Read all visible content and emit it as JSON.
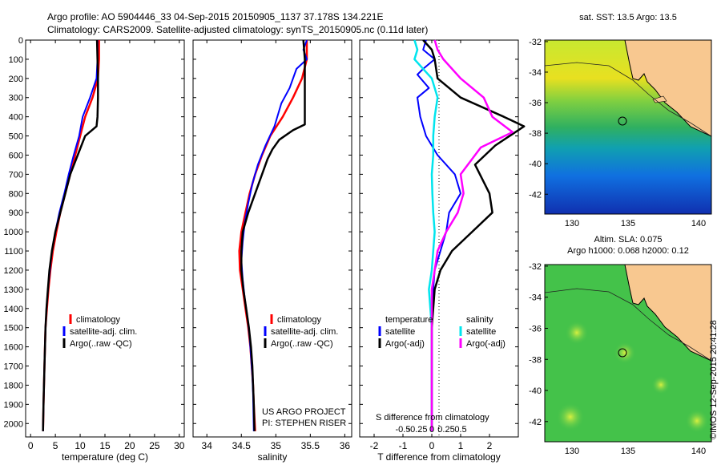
{
  "header": {
    "title_line1": "Argo profile: AO 5904446_33 04-Sep-2015 20150905_1137 37.178S 134.221E",
    "title_line2": "Climatology: CARS2009. Satellite-adjusted climatology: synTS_20150905.nc (0.11d later)"
  },
  "colors": {
    "climatology": "#ff0000",
    "satellite": "#0000ff",
    "argo": "#000000",
    "sal_sat": "#00e5ee",
    "sal_argo": "#ff00ff"
  },
  "chart_data": [
    {
      "type": "line",
      "panel": "temperature",
      "xlabel": "temperature (deg C)",
      "xlim": [
        -1,
        31
      ],
      "xticks": [
        0,
        5,
        10,
        15,
        20,
        25,
        30
      ],
      "ylim": [
        2070,
        0
      ],
      "yticks": [
        0,
        100,
        200,
        300,
        400,
        500,
        600,
        700,
        800,
        900,
        1000,
        1100,
        1200,
        1300,
        1400,
        1500,
        1600,
        1700,
        1800,
        1900,
        2000
      ],
      "legend": [
        "climatology",
        "satellite-adj. clim.",
        "Argo(..raw -QC)"
      ],
      "series": [
        {
          "name": "climatology",
          "color": "#ff0000",
          "points": [
            [
              13.8,
              0
            ],
            [
              13.8,
              100
            ],
            [
              13.6,
              200
            ],
            [
              12.5,
              300
            ],
            [
              11,
              400
            ],
            [
              10,
              500
            ],
            [
              9,
              600
            ],
            [
              8,
              700
            ],
            [
              7,
              800
            ],
            [
              6,
              900
            ],
            [
              5.2,
              1000
            ],
            [
              4.5,
              1100
            ],
            [
              4,
              1200
            ],
            [
              3.6,
              1300
            ],
            [
              3.3,
              1400
            ],
            [
              3,
              1500
            ],
            [
              2.8,
              1700
            ],
            [
              2.6,
              1900
            ],
            [
              2.5,
              2040
            ]
          ]
        },
        {
          "name": "satellite-adj. clim.",
          "color": "#0000ff",
          "points": [
            [
              13.5,
              0
            ],
            [
              13.5,
              100
            ],
            [
              13.3,
              200
            ],
            [
              12,
              300
            ],
            [
              10.5,
              400
            ],
            [
              9.8,
              500
            ],
            [
              8.7,
              600
            ],
            [
              7.7,
              700
            ],
            [
              6.8,
              800
            ],
            [
              5.8,
              900
            ],
            [
              5,
              1000
            ],
            [
              4.3,
              1100
            ],
            [
              3.9,
              1200
            ],
            [
              3.5,
              1300
            ],
            [
              3.2,
              1400
            ],
            [
              3,
              1500
            ],
            [
              2.8,
              1700
            ],
            [
              2.6,
              1900
            ],
            [
              2.5,
              2040
            ]
          ]
        },
        {
          "name": "Argo(..raw -QC)",
          "color": "#000000",
          "points": [
            [
              13.4,
              0
            ],
            [
              13.5,
              100
            ],
            [
              13.6,
              200
            ],
            [
              13.6,
              300
            ],
            [
              13.5,
              400
            ],
            [
              13.3,
              450
            ],
            [
              11,
              500
            ],
            [
              9.5,
              600
            ],
            [
              8,
              700
            ],
            [
              7,
              800
            ],
            [
              6,
              900
            ],
            [
              5,
              1000
            ],
            [
              4.3,
              1100
            ],
            [
              3.8,
              1200
            ],
            [
              3.5,
              1300
            ],
            [
              3.2,
              1400
            ],
            [
              3,
              1500
            ],
            [
              2.8,
              1700
            ],
            [
              2.6,
              1900
            ],
            [
              2.5,
              2040
            ]
          ]
        }
      ]
    },
    {
      "type": "line",
      "panel": "salinity",
      "xlabel": "salinity",
      "xlim": [
        33.8,
        36.1
      ],
      "xticks": [
        34,
        34.5,
        35,
        35.5,
        36
      ],
      "xtick_labels": [
        "34",
        "34.5",
        "35",
        "35.5",
        "36"
      ],
      "ylim": [
        2070,
        0
      ],
      "legend": [
        "climatology",
        "satellite-adj. clim.",
        "Argo(..raw -QC)"
      ],
      "annotation": [
        "US ARGO PROJECT",
        "PI: STEPHEN RISER"
      ],
      "series": [
        {
          "name": "climatology",
          "color": "#ff0000",
          "points": [
            [
              35.45,
              0
            ],
            [
              35.45,
              100
            ],
            [
              35.38,
              200
            ],
            [
              35.25,
              300
            ],
            [
              35.1,
              400
            ],
            [
              34.92,
              500
            ],
            [
              34.8,
              600
            ],
            [
              34.7,
              700
            ],
            [
              34.62,
              800
            ],
            [
              34.56,
              900
            ],
            [
              34.5,
              1000
            ],
            [
              34.47,
              1100
            ],
            [
              34.48,
              1200
            ],
            [
              34.52,
              1300
            ],
            [
              34.56,
              1400
            ],
            [
              34.6,
              1500
            ],
            [
              34.63,
              1600
            ],
            [
              34.65,
              1700
            ],
            [
              34.67,
              1800
            ],
            [
              34.68,
              1900
            ],
            [
              34.7,
              2040
            ]
          ]
        },
        {
          "name": "satellite-adj. clim.",
          "color": "#0000ff",
          "points": [
            [
              35.45,
              0
            ],
            [
              35.4,
              50
            ],
            [
              35.45,
              100
            ],
            [
              35.3,
              150
            ],
            [
              35.2,
              250
            ],
            [
              35.08,
              330
            ],
            [
              34.98,
              450
            ],
            [
              34.85,
              550
            ],
            [
              34.74,
              650
            ],
            [
              34.66,
              750
            ],
            [
              34.6,
              850
            ],
            [
              34.55,
              950
            ],
            [
              34.52,
              1050
            ],
            [
              34.5,
              1150
            ],
            [
              34.52,
              1250
            ],
            [
              34.55,
              1350
            ],
            [
              34.59,
              1450
            ],
            [
              34.62,
              1550
            ],
            [
              34.64,
              1650
            ],
            [
              34.66,
              1750
            ],
            [
              34.67,
              1850
            ],
            [
              34.68,
              2040
            ]
          ]
        },
        {
          "name": "Argo(..raw -QC)",
          "color": "#000000",
          "points": [
            [
              35.4,
              0
            ],
            [
              35.42,
              100
            ],
            [
              35.42,
              300
            ],
            [
              35.42,
              440
            ],
            [
              35.25,
              470
            ],
            [
              35.05,
              520
            ],
            [
              34.95,
              570
            ],
            [
              34.88,
              620
            ],
            [
              34.8,
              700
            ],
            [
              34.7,
              800
            ],
            [
              34.6,
              900
            ],
            [
              34.52,
              1000
            ],
            [
              34.5,
              1100
            ],
            [
              34.5,
              1200
            ],
            [
              34.53,
              1300
            ],
            [
              34.57,
              1400
            ],
            [
              34.61,
              1500
            ],
            [
              34.64,
              1600
            ],
            [
              34.66,
              1700
            ],
            [
              34.67,
              1800
            ],
            [
              34.68,
              1900
            ],
            [
              34.69,
              2040
            ]
          ]
        }
      ]
    },
    {
      "type": "line",
      "panel": "difference",
      "xlabel": "T difference from climatology",
      "xlabel_top": "S difference from climatology",
      "xlim": [
        -2.5,
        3
      ],
      "xticks": [
        -2,
        -1,
        0,
        1,
        2
      ],
      "xticks_top": [
        -1,
        -0.5,
        0,
        0.5,
        1
      ],
      "xtick_labels_top": [
        "-0.5",
        "-0.25",
        "0",
        "0.25",
        "0.5"
      ],
      "ylim": [
        2070,
        0
      ],
      "legend_temperature": [
        "temperature",
        "satellite",
        "Argo(-adj)"
      ],
      "legend_salinity": [
        "salinity",
        "satellite",
        "Argo(-adj)"
      ],
      "series": [
        {
          "name": "T satellite",
          "color": "#0000ff",
          "points": [
            [
              -0.2,
              0
            ],
            [
              -0.3,
              50
            ],
            [
              0.1,
              100
            ],
            [
              -0.3,
              150
            ],
            [
              -0.5,
              180
            ],
            [
              -0.1,
              250
            ],
            [
              -0.5,
              300
            ],
            [
              -0.4,
              400
            ],
            [
              -0.2,
              500
            ],
            [
              0.2,
              600
            ],
            [
              0.8,
              700
            ],
            [
              1,
              800
            ],
            [
              0.6,
              900
            ],
            [
              0.5,
              1000
            ],
            [
              0.3,
              1100
            ],
            [
              0.1,
              1200
            ],
            [
              0.05,
              1300
            ],
            [
              0,
              1500
            ],
            [
              0,
              2040
            ]
          ]
        },
        {
          "name": "T Argo(-adj)",
          "color": "#000000",
          "points": [
            [
              -0.3,
              0
            ],
            [
              0,
              50
            ],
            [
              0.1,
              100
            ],
            [
              0.2,
              200
            ],
            [
              1,
              300
            ],
            [
              2.5,
              400
            ],
            [
              3.2,
              450
            ],
            [
              2.2,
              550
            ],
            [
              1.5,
              650
            ],
            [
              2,
              800
            ],
            [
              2.1,
              900
            ],
            [
              1.4,
              1000
            ],
            [
              0.7,
              1100
            ],
            [
              0.3,
              1200
            ],
            [
              0.1,
              1300
            ],
            [
              0,
              1500
            ],
            [
              0,
              2040
            ]
          ]
        },
        {
          "name": "S satellite",
          "color": "#00e5ee",
          "points": [
            [
              -0.6,
              0
            ],
            [
              -0.5,
              50
            ],
            [
              -0.6,
              100
            ],
            [
              -0.3,
              150
            ],
            [
              0,
              200
            ],
            [
              0.2,
              300
            ],
            [
              0.1,
              400
            ],
            [
              0.05,
              500
            ],
            [
              0.05,
              600
            ],
            [
              0,
              700
            ],
            [
              0.02,
              800
            ],
            [
              0.05,
              900
            ],
            [
              0.1,
              1000
            ],
            [
              0.05,
              1100
            ],
            [
              0,
              1200
            ],
            [
              -0.1,
              1300
            ],
            [
              -0.05,
              1400
            ],
            [
              0,
              1500
            ],
            [
              0,
              2040
            ]
          ]
        },
        {
          "name": "S Argo(-adj)",
          "color": "#ff00ff",
          "points": [
            [
              0.1,
              0
            ],
            [
              0.2,
              50
            ],
            [
              0.4,
              100
            ],
            [
              1,
              200
            ],
            [
              1.8,
              300
            ],
            [
              2.1,
              400
            ],
            [
              2.8,
              480
            ],
            [
              1.7,
              560
            ],
            [
              1,
              700
            ],
            [
              1.1,
              800
            ],
            [
              0.9,
              900
            ],
            [
              0.5,
              1000
            ],
            [
              0.2,
              1100
            ],
            [
              0.1,
              1200
            ],
            [
              0,
              1300
            ],
            [
              0,
              1500
            ],
            [
              0,
              2040
            ]
          ]
        }
      ]
    }
  ],
  "maps": {
    "sst": {
      "title": "sat. SST: 13.5 Argo: 13.5",
      "xticks": [
        130,
        135,
        140
      ],
      "yticks": [
        -32,
        -34,
        -36,
        -38,
        -40,
        -42
      ]
    },
    "sla": {
      "title_line1": "Altim. SLA: 0.075",
      "title_line2": "Argo h1000: 0.068 h2000: 0.12",
      "xticks": [
        130,
        135,
        140
      ],
      "yticks": [
        -32,
        -34,
        -36,
        -38,
        -40,
        -42
      ]
    }
  },
  "credit": "©IMOS 12-Sep-2015 20:41:28"
}
